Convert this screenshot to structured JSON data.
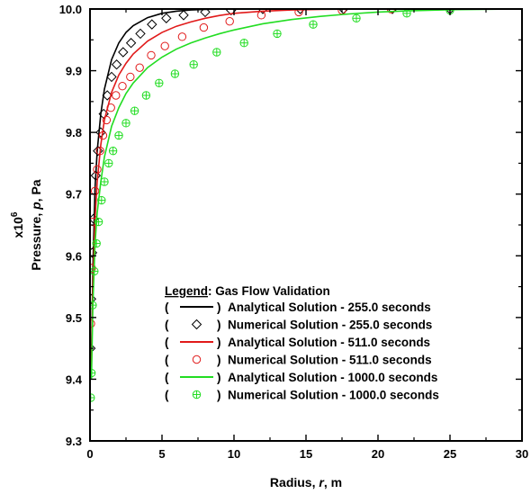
{
  "chart_data": {
    "type": "line",
    "xlabel_prefix": "Radius, ",
    "xlabel_var": "r",
    "xlabel_suffix": ", m",
    "ylabel_prefix": "Pressure, ",
    "ylabel_var": "p",
    "ylabel_suffix": ", Pa",
    "y_multiplier_base": "x10",
    "y_multiplier_exp": "6",
    "y_scale": 1000000,
    "xlim": [
      0,
      30
    ],
    "ylim": [
      9.3,
      10.0
    ],
    "x_ticks": [
      "0",
      "5",
      "10",
      "15",
      "20",
      "25",
      "30"
    ],
    "y_ticks": [
      "9.3",
      "9.4",
      "9.5",
      "9.6",
      "9.7",
      "9.8",
      "9.9",
      "10.0"
    ],
    "grid": false,
    "legend_position": "lower-right",
    "legend": {
      "heading_underlined": "Legend",
      "heading_rest": ": Gas Flow Validation",
      "open_paren": "(",
      "close_paren": ")"
    },
    "series": [
      {
        "name": "Analytical Solution - 255.0 seconds",
        "kind": "line",
        "color": "#000000",
        "x": [
          0.1,
          0.2,
          0.35,
          0.5,
          0.75,
          1.0,
          1.5,
          2.0,
          2.5,
          3.0,
          4.0,
          5.0,
          6.0,
          7.0,
          8.0,
          9.0,
          10.0,
          12.0,
          15.0,
          30.0
        ],
        "y": [
          9.43,
          9.58,
          9.71,
          9.77,
          9.83,
          9.87,
          9.918,
          9.945,
          9.962,
          9.973,
          9.986,
          9.993,
          9.9965,
          9.9985,
          9.9993,
          9.9997,
          9.9999,
          10.0,
          10.0,
          10.0
        ]
      },
      {
        "name": "Numerical Solution - 255.0 seconds",
        "kind": "marker",
        "marker": "diamond",
        "color": "#000000",
        "x": [
          0.04,
          0.08,
          0.15,
          0.25,
          0.4,
          0.55,
          0.75,
          0.95,
          1.2,
          1.5,
          1.85,
          2.3,
          2.85,
          3.5,
          4.3,
          5.3,
          6.5,
          8.0,
          9.8,
          12.0,
          14.6,
          17.6,
          21.0,
          25.0
        ],
        "y": [
          9.45,
          9.53,
          9.605,
          9.66,
          9.73,
          9.77,
          9.8,
          9.83,
          9.86,
          9.89,
          9.91,
          9.93,
          9.945,
          9.96,
          9.975,
          9.985,
          9.99,
          9.995,
          9.998,
          10.0,
          10.0,
          10.0,
          10.0,
          10.0
        ]
      },
      {
        "name": "Analytical Solution - 511.0 seconds",
        "kind": "line",
        "color": "#e11a1a",
        "x": [
          0.1,
          0.2,
          0.35,
          0.5,
          0.75,
          1.0,
          1.5,
          2.0,
          2.5,
          3.0,
          4.0,
          5.0,
          6.0,
          7.0,
          8.0,
          9.0,
          10.0,
          12.0,
          14.0,
          16.0,
          18.0,
          20.0,
          30.0
        ],
        "y": [
          9.42,
          9.55,
          9.66,
          9.72,
          9.78,
          9.82,
          9.865,
          9.893,
          9.912,
          9.927,
          9.948,
          9.962,
          9.972,
          9.979,
          9.985,
          9.9895,
          9.993,
          9.9965,
          9.9985,
          9.9994,
          9.9998,
          10.0,
          10.0
        ]
      },
      {
        "name": "Numerical Solution - 511.0 seconds",
        "kind": "marker",
        "marker": "circle",
        "color": "#e11a1a",
        "x": [
          0.06,
          0.12,
          0.22,
          0.35,
          0.5,
          0.7,
          0.9,
          1.15,
          1.45,
          1.8,
          2.25,
          2.8,
          3.45,
          4.25,
          5.2,
          6.4,
          7.9,
          9.7,
          11.9,
          14.5,
          17.5,
          20.9
        ],
        "y": [
          9.49,
          9.58,
          9.655,
          9.705,
          9.74,
          9.77,
          9.795,
          9.82,
          9.84,
          9.86,
          9.875,
          9.89,
          9.905,
          9.925,
          9.94,
          9.955,
          9.97,
          9.98,
          9.99,
          9.995,
          9.998,
          10.0
        ]
      },
      {
        "name": "Analytical Solution - 1000.0 seconds",
        "kind": "line",
        "color": "#22dd22",
        "x": [
          0.1,
          0.2,
          0.35,
          0.5,
          0.75,
          1.0,
          1.5,
          2.0,
          2.5,
          3.0,
          4.0,
          5.0,
          6.0,
          7.0,
          8.0,
          9.0,
          10.0,
          12.0,
          14.0,
          16.0,
          18.0,
          20.0,
          22.0,
          25.0,
          30.0
        ],
        "y": [
          9.4,
          9.52,
          9.62,
          9.67,
          9.72,
          9.76,
          9.81,
          9.84,
          9.863,
          9.88,
          9.905,
          9.922,
          9.935,
          9.945,
          9.953,
          9.96,
          9.966,
          9.976,
          9.983,
          9.988,
          9.992,
          9.995,
          9.997,
          9.9988,
          10.0
        ]
      },
      {
        "name": "Numerical Solution - 1000.0 seconds",
        "kind": "marker",
        "marker": "circle-plus",
        "color": "#22dd22",
        "x": [
          0.05,
          0.1,
          0.18,
          0.3,
          0.45,
          0.6,
          0.8,
          1.0,
          1.3,
          1.6,
          2.0,
          2.5,
          3.1,
          3.9,
          4.8,
          5.9,
          7.2,
          8.8,
          10.7,
          13.0,
          15.5,
          18.5,
          22.0,
          25.0
        ],
        "y": [
          9.37,
          9.41,
          9.52,
          9.575,
          9.62,
          9.655,
          9.69,
          9.72,
          9.75,
          9.77,
          9.795,
          9.815,
          9.835,
          9.86,
          9.88,
          9.895,
          9.91,
          9.93,
          9.945,
          9.96,
          9.975,
          9.985,
          9.993,
          9.998
        ]
      }
    ]
  }
}
